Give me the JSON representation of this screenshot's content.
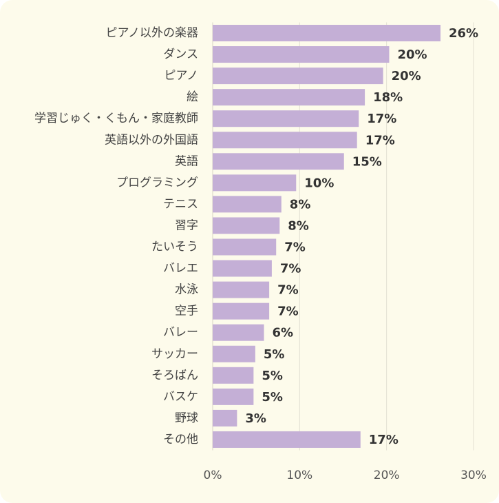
{
  "chart_data": {
    "type": "bar",
    "orientation": "horizontal",
    "categories": [
      "ピアノ以外の楽器",
      "ダンス",
      "ピアノ",
      "絵",
      "学習じゅく・くもん・家庭教師",
      "英語以外の外国語",
      "英語",
      "プログラミング",
      "テニス",
      "習字",
      "たいそう",
      "バレエ",
      "水泳",
      "空手",
      "バレー",
      "サッカー",
      "そろばん",
      "バスケ",
      "野球",
      "その他"
    ],
    "values": [
      26.2,
      20.3,
      19.6,
      17.5,
      16.8,
      16.6,
      15.1,
      9.6,
      7.9,
      7.7,
      7.3,
      6.8,
      6.5,
      6.5,
      5.9,
      4.9,
      4.7,
      4.7,
      2.8,
      17.0
    ],
    "value_labels": [
      "26%",
      "20%",
      "20%",
      "18%",
      "17%",
      "17%",
      "15%",
      "10%",
      "8%",
      "8%",
      "7%",
      "7%",
      "7%",
      "7%",
      "6%",
      "5%",
      "5%",
      "5%",
      "3%",
      "17%"
    ],
    "xlim": [
      0,
      30
    ],
    "xticks": [
      0,
      10,
      20,
      30
    ],
    "xtick_labels": [
      "0%",
      "10%",
      "20%",
      "30%"
    ],
    "grid": "vertical",
    "title": "",
    "xlabel": "",
    "ylabel": "",
    "colors": {
      "bar": "#c4afd6",
      "grid": "#e2dfd2",
      "background": "#fdfbeb"
    }
  }
}
